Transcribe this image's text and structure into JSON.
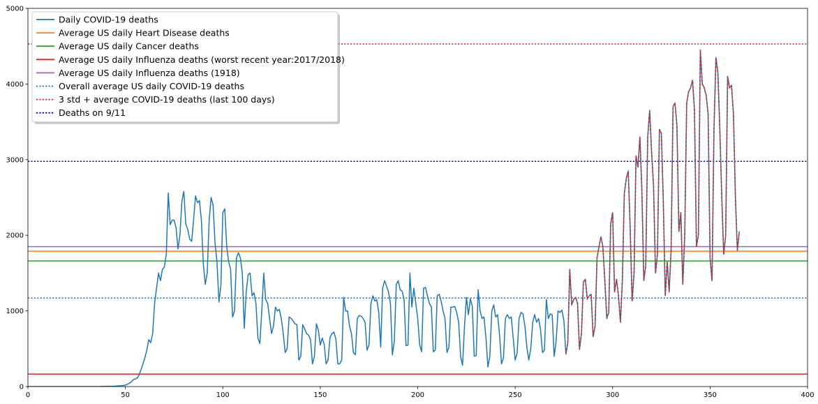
{
  "chart_data": {
    "type": "line",
    "xlim": [
      0,
      400
    ],
    "ylim": [
      0,
      5000
    ],
    "x_ticks": [
      0,
      50,
      100,
      150,
      200,
      250,
      300,
      350,
      400
    ],
    "y_ticks": [
      0,
      1000,
      2000,
      3000,
      4000,
      5000
    ],
    "grid": false,
    "legend_position": "top-left",
    "series": [
      {
        "name": "Daily COVID-19 deaths",
        "color": "#1f77b4",
        "style": "solid",
        "x_start": 0,
        "values": [
          0,
          0,
          0,
          0,
          0,
          0,
          0,
          0,
          0,
          0,
          0,
          0,
          0,
          0,
          0,
          0,
          0,
          0,
          0,
          0,
          0,
          0,
          0,
          0,
          0,
          0,
          0,
          0,
          0,
          0,
          0,
          0,
          0,
          0,
          0,
          0,
          0,
          0,
          3,
          2,
          4,
          4,
          5,
          4,
          5,
          6,
          8,
          10,
          12,
          15,
          18,
          30,
          45,
          60,
          90,
          100,
          110,
          150,
          220,
          300,
          380,
          480,
          620,
          580,
          700,
          1100,
          1300,
          1500,
          1400,
          1550,
          1580,
          1750,
          2560,
          2140,
          2200,
          2200,
          2100,
          1820,
          2000,
          2450,
          2580,
          2150,
          2080,
          1950,
          1920,
          2200,
          2520,
          2430,
          2460,
          2200,
          1620,
          1350,
          1500,
          2200,
          2500,
          2400,
          1900,
          1650,
          1120,
          1330,
          2300,
          2350,
          1850,
          1650,
          1550,
          920,
          1000,
          1700,
          1770,
          1700,
          1500,
          770,
          1250,
          1480,
          1500,
          1200,
          1240,
          1100,
          640,
          570,
          1000,
          1500,
          1150,
          1100,
          900,
          700,
          800,
          1050,
          1000,
          1020,
          900,
          700,
          450,
          500,
          920,
          900,
          870,
          830,
          820,
          350,
          400,
          820,
          760,
          700,
          680,
          620,
          300,
          400,
          830,
          750,
          550,
          640,
          560,
          300,
          350,
          650,
          700,
          720,
          630,
          300,
          300,
          350,
          1180,
          1000,
          1000,
          800,
          700,
          450,
          420,
          900,
          940,
          930,
          900,
          850,
          480,
          550,
          1100,
          1200,
          1130,
          1150,
          980,
          520,
          1300,
          1400,
          1330,
          1250,
          1100,
          420,
          600,
          1350,
          1400,
          1280,
          1260,
          1150,
          540,
          550,
          1500,
          1050,
          1300,
          1100,
          900,
          550,
          460,
          1300,
          1310,
          1200,
          1100,
          1050,
          460,
          480,
          1200,
          1220,
          1130,
          1000,
          900,
          450,
          520,
          1050,
          1050,
          1060,
          980,
          850,
          400,
          280,
          800,
          1180,
          950,
          1160,
          1060,
          400,
          410,
          1280,
          1000,
          900,
          920,
          650,
          260,
          400,
          1000,
          1080,
          920,
          950,
          680,
          300,
          380,
          900,
          950,
          900,
          920,
          640,
          350,
          440,
          900,
          980,
          960,
          800,
          520,
          350,
          500,
          850,
          950,
          850,
          900,
          760,
          450,
          480,
          1150,
          900,
          960,
          950,
          400,
          600,
          1000,
          980,
          1010,
          870,
          430,
          580,
          1550,
          1080,
          1150,
          1180,
          1100,
          490,
          700,
          1380,
          1420,
          1160,
          1200,
          1220,
          660,
          800,
          1700,
          1850,
          1980,
          1850,
          1400,
          900,
          980,
          2150,
          2300,
          1250,
          1420,
          1200,
          850,
          1400,
          2550,
          2750,
          2850,
          2100,
          1130,
          1500,
          3050,
          2900,
          3300,
          2600,
          1400,
          1600,
          3300,
          3650,
          3100,
          2650,
          1500,
          1750,
          3400,
          3350,
          2450,
          1200,
          1650,
          1250,
          1800,
          3700,
          3750,
          3450,
          2050,
          2300,
          1350,
          2000,
          3750,
          3900,
          3950,
          4050,
          3650,
          1850,
          2000,
          4450,
          4000,
          3950,
          3850,
          3600,
          1700,
          1400,
          3400,
          4350,
          4150,
          3400,
          2500,
          1750,
          2000,
          4100,
          3950,
          3980,
          3600,
          2500,
          1800,
          2050
        ]
      },
      {
        "name": "Average US daily Heart Disease deaths",
        "color": "#ff7f0e",
        "style": "solid",
        "y": 1790
      },
      {
        "name": "Average US daily Cancer deaths",
        "color": "#2ca02c",
        "style": "solid",
        "y": 1660
      },
      {
        "name": "Average US daily Influenza deaths (worst recent year:2017/2018)",
        "color": "#d62728",
        "style": "solid",
        "y": 165
      },
      {
        "name": "Average US daily Influenza deaths (1918)",
        "color": "#9467bd",
        "style": "solid",
        "y": 1850
      },
      {
        "name": "Overall average US daily COVID-19 deaths",
        "color": "#1f77b4",
        "style": "dotted",
        "y": 1170
      },
      {
        "name": "3 std + average COVID-19 deaths (last 100 days)",
        "color": "#d62728",
        "style": "dotted",
        "y": 4530,
        "overlay_from_x": 276
      },
      {
        "name": "Deaths on 9/11",
        "color": "#0000ff",
        "style": "dotted",
        "y": 2977
      }
    ]
  }
}
